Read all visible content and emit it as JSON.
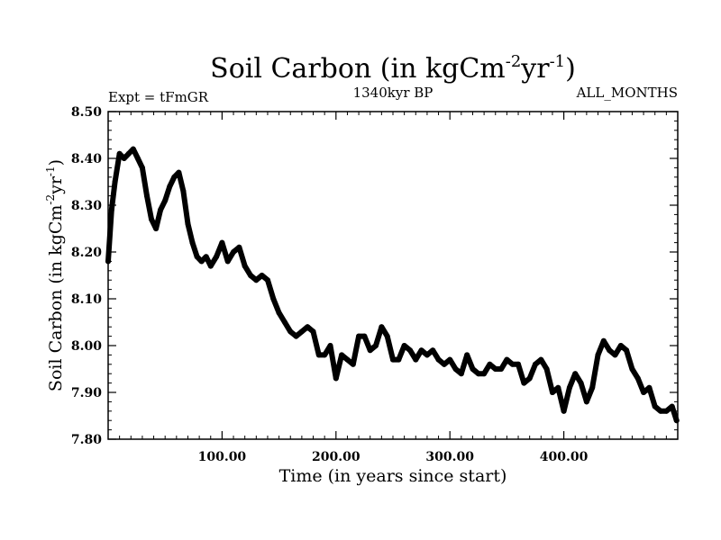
{
  "chart_data": {
    "type": "line",
    "title": {
      "base": "Soil Carbon (in kgCm",
      "sup1": "-2",
      "mid": "yr",
      "sup2": "-1",
      "end": ")"
    },
    "subtitle_left": "Expt = tFmGR",
    "subtitle_center": "1340kyr BP",
    "subtitle_right": "ALL_MONTHS",
    "xlabel": "Time (in years since start)",
    "ylabel": {
      "base": "Soil Carbon (in kgCm",
      "sup1": "-2",
      "mid": "yr",
      "sup2": "-1",
      "end": ")"
    },
    "xlim": [
      0,
      500
    ],
    "ylim": [
      7.8,
      8.5
    ],
    "xticks": [
      100,
      200,
      300,
      400
    ],
    "xtick_labels": [
      "100.00",
      "200.00",
      "300.00",
      "400.00"
    ],
    "yticks": [
      7.8,
      7.9,
      8.0,
      8.1,
      8.2,
      8.3,
      8.4,
      8.5
    ],
    "ytick_labels": [
      "7.80",
      "7.90",
      "8.00",
      "8.10",
      "8.20",
      "8.30",
      "8.40",
      "8.50"
    ],
    "line_color": "#000000",
    "series": [
      {
        "name": "Soil Carbon",
        "x": [
          0,
          3,
          6,
          10,
          14,
          18,
          22,
          26,
          30,
          34,
          38,
          42,
          46,
          50,
          54,
          58,
          62,
          66,
          70,
          74,
          78,
          82,
          86,
          90,
          95,
          100,
          105,
          110,
          115,
          120,
          125,
          130,
          135,
          140,
          145,
          150,
          155,
          160,
          165,
          170,
          175,
          180,
          185,
          190,
          195,
          200,
          205,
          210,
          215,
          220,
          225,
          230,
          235,
          240,
          245,
          250,
          255,
          260,
          265,
          270,
          275,
          280,
          285,
          290,
          295,
          300,
          305,
          310,
          315,
          320,
          325,
          330,
          335,
          340,
          345,
          350,
          355,
          360,
          365,
          370,
          375,
          380,
          385,
          390,
          395,
          400,
          405,
          410,
          415,
          420,
          425,
          430,
          435,
          440,
          445,
          450,
          455,
          460,
          465,
          470,
          475,
          480,
          485,
          490,
          495,
          499
        ],
        "y": [
          8.18,
          8.29,
          8.35,
          8.41,
          8.4,
          8.41,
          8.42,
          8.4,
          8.38,
          8.32,
          8.27,
          8.25,
          8.29,
          8.31,
          8.34,
          8.36,
          8.37,
          8.33,
          8.26,
          8.22,
          8.19,
          8.18,
          8.19,
          8.17,
          8.19,
          8.22,
          8.18,
          8.2,
          8.21,
          8.17,
          8.15,
          8.14,
          8.15,
          8.14,
          8.1,
          8.07,
          8.05,
          8.03,
          8.02,
          8.03,
          8.04,
          8.03,
          7.98,
          7.98,
          8.0,
          7.93,
          7.98,
          7.97,
          7.96,
          8.02,
          8.02,
          7.99,
          8.0,
          8.04,
          8.02,
          7.97,
          7.97,
          8.0,
          7.99,
          7.97,
          7.99,
          7.98,
          7.99,
          7.97,
          7.96,
          7.97,
          7.95,
          7.94,
          7.98,
          7.95,
          7.94,
          7.94,
          7.96,
          7.95,
          7.95,
          7.97,
          7.96,
          7.96,
          7.92,
          7.93,
          7.96,
          7.97,
          7.95,
          7.9,
          7.91,
          7.86,
          7.91,
          7.94,
          7.92,
          7.88,
          7.91,
          7.98,
          8.01,
          7.99,
          7.98,
          8.0,
          7.99,
          7.95,
          7.93,
          7.9,
          7.91,
          7.87,
          7.86,
          7.86,
          7.87,
          7.84
        ]
      }
    ]
  }
}
